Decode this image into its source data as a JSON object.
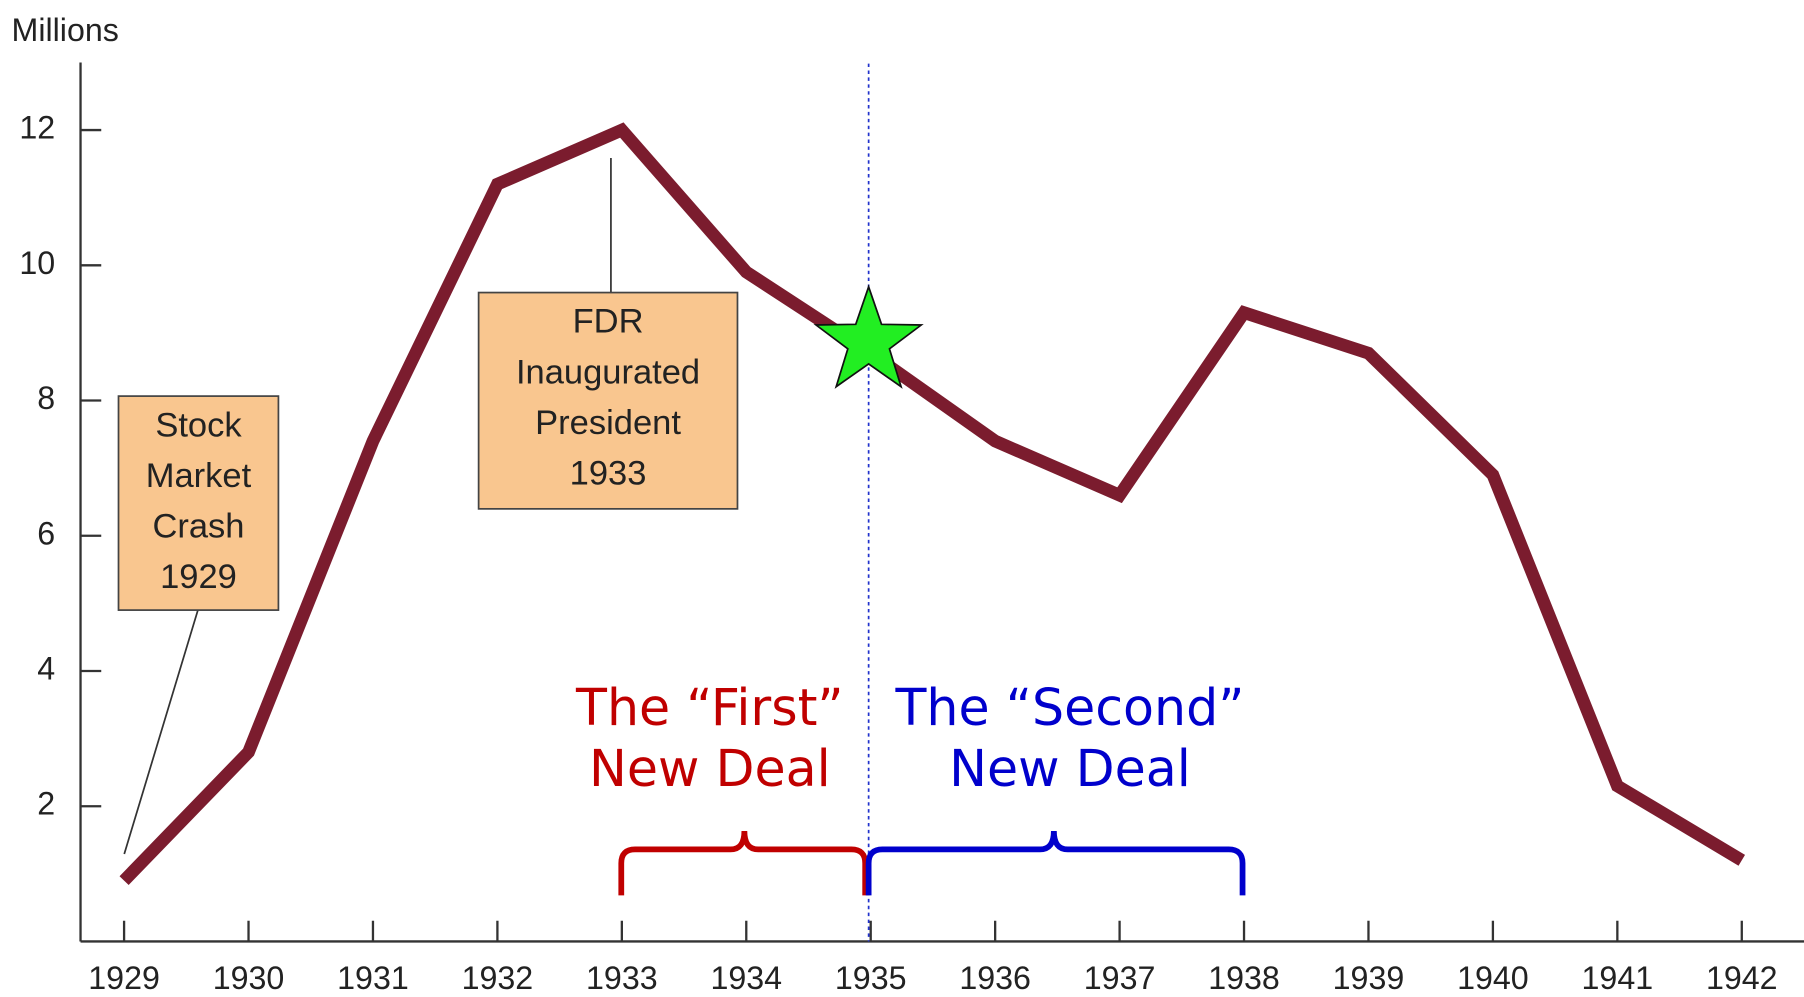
{
  "chart_data": {
    "type": "line",
    "y_axis_label": "Millions",
    "x": [
      1929,
      1930,
      1931,
      1932,
      1933,
      1934,
      1935,
      1936,
      1937,
      1938,
      1939,
      1940,
      1941,
      1942
    ],
    "series": [
      {
        "color": "#7b1c2e",
        "values": [
          0.9,
          2.8,
          7.4,
          11.2,
          12.0,
          9.9,
          8.7,
          7.4,
          6.6,
          9.3,
          8.7,
          6.9,
          2.3,
          1.2
        ]
      }
    ],
    "xlim": [
      1928.65,
      1942.5
    ],
    "xticks": [
      1929,
      1930,
      1931,
      1932,
      1933,
      1934,
      1935,
      1936,
      1937,
      1938,
      1939,
      1940,
      1941,
      1942
    ],
    "ylim": [
      0,
      13
    ],
    "yticks": [
      2,
      4,
      6,
      8,
      10,
      12
    ],
    "annotations": [
      {
        "lines": [
          "Stock",
          "Market",
          "Crash",
          "1929"
        ]
      },
      {
        "lines": [
          "FDR",
          "Inaugurated",
          "President",
          "1933"
        ]
      }
    ],
    "periods": [
      {
        "lines": [
          "The “First”",
          "New Deal"
        ],
        "color": "#c00000"
      },
      {
        "lines": [
          "The “Second”",
          "New Deal"
        ],
        "color": "#0000cc"
      }
    ]
  }
}
